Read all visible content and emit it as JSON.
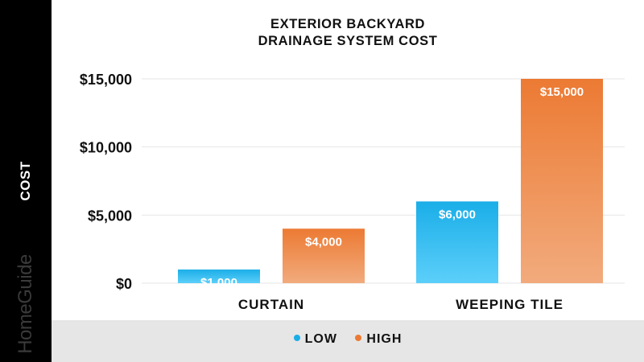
{
  "brand": "HomeGuide",
  "colors": {
    "low_top": "#1aaee8",
    "low_bottom": "#5ccffa",
    "high_top": "#ec7a33",
    "high_bottom": "#f2ab7d",
    "low_dot": "#1aaee8",
    "high_dot": "#ec7a33",
    "grid": "#e6e6e6"
  },
  "chart_data": {
    "type": "bar",
    "title": [
      "EXTERIOR BACKYARD",
      "DRAINAGE SYSTEM COST"
    ],
    "ylabel": "COST",
    "xlabel": "",
    "categories": [
      "CURTAIN",
      "WEEPING TILE"
    ],
    "series": [
      {
        "name": "LOW",
        "values": [
          1000,
          6000
        ],
        "labels": [
          "$1,000",
          "$6,000"
        ]
      },
      {
        "name": "HIGH",
        "values": [
          4000,
          15000
        ],
        "labels": [
          "$4,000",
          "$15,000"
        ]
      }
    ],
    "ylim": [
      0,
      15000
    ],
    "yticks": [
      0,
      5000,
      10000,
      15000
    ],
    "ytick_labels": [
      "$0",
      "$5,000",
      "$10,000",
      "$15,000"
    ],
    "grid": true,
    "legend_position": "bottom"
  }
}
